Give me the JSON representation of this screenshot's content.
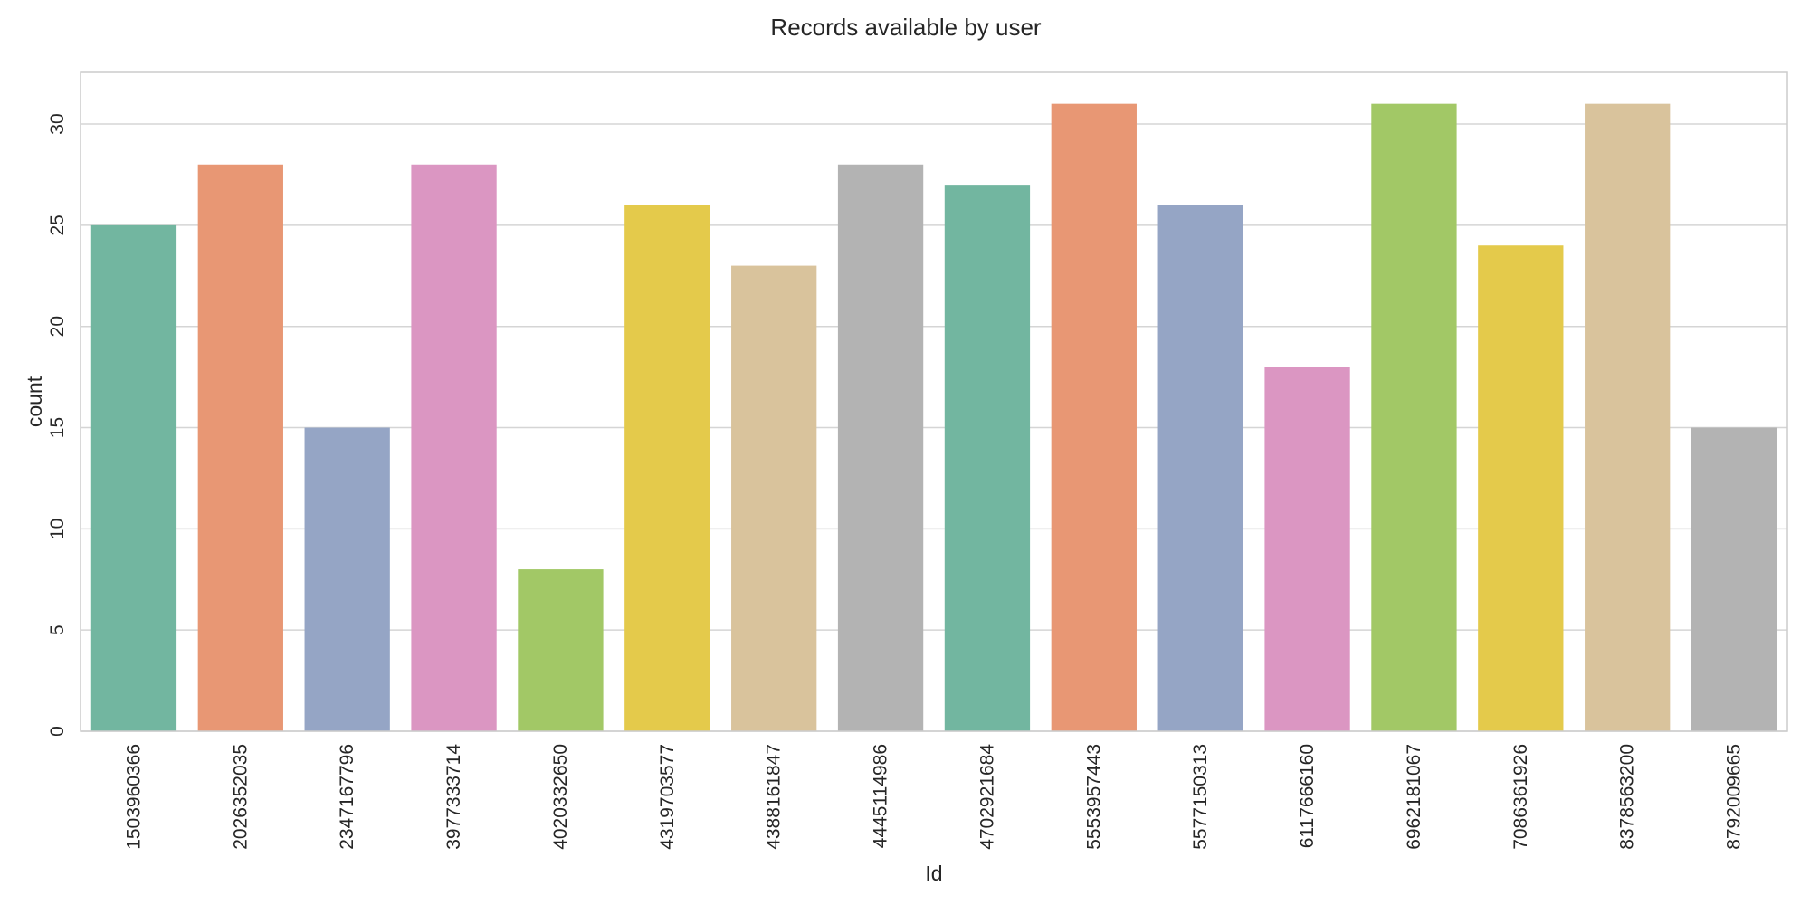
{
  "chart_data": {
    "type": "bar",
    "title": "Records available by user",
    "xlabel": "Id",
    "ylabel": "count",
    "ylim": [
      0,
      32.55
    ],
    "yticks": [
      0,
      5,
      10,
      15,
      20,
      25,
      30
    ],
    "grid": true,
    "categories": [
      "1503960366",
      "2026352035",
      "2347167796",
      "3977333714",
      "4020332650",
      "4319703577",
      "4388161847",
      "4445114986",
      "4702921684",
      "5553957443",
      "5577150313",
      "6117666160",
      "6962181067",
      "7086361926",
      "8378563200",
      "8792009665"
    ],
    "values": [
      25,
      28,
      15,
      28,
      8,
      26,
      23,
      28,
      27,
      31,
      26,
      18,
      31,
      24,
      31,
      15
    ],
    "colors": [
      "#72b6a0",
      "#e89774",
      "#95a5c5",
      "#db96c2",
      "#a2c866",
      "#e4ca4b",
      "#d9c39c",
      "#b3b3b3",
      "#72b6a0",
      "#e89774",
      "#95a5c5",
      "#db96c2",
      "#a2c866",
      "#e4ca4b",
      "#d9c39c",
      "#b3b3b3"
    ],
    "grid_color": "#d5d5d5",
    "frame_color": "#cccccc"
  }
}
